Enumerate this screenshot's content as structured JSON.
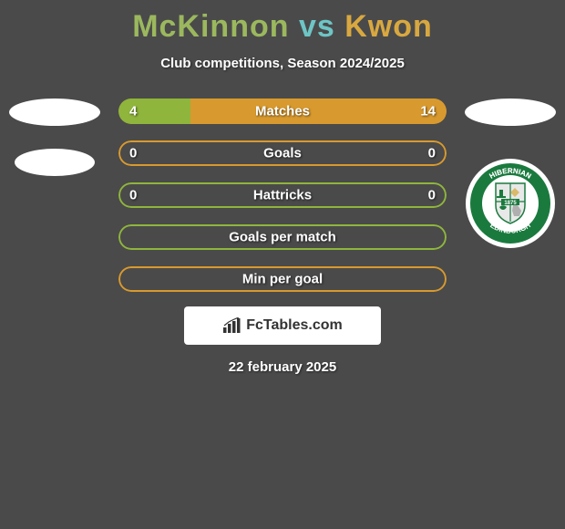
{
  "header": {
    "player1": "McKinnon",
    "vs": "vs",
    "player2": "Kwon",
    "subtitle": "Club competitions, Season 2024/2025"
  },
  "colors": {
    "player1_accent": "#9bb85e",
    "vs_accent": "#6ec5c5",
    "player2_accent": "#d8a840",
    "bar_green": "#8fb53c",
    "bar_orange": "#d89a2e",
    "background": "#4a4a4a",
    "text": "#ffffff"
  },
  "bars": [
    {
      "label": "Matches",
      "left_value": "4",
      "right_value": "14",
      "left_pct": 22,
      "right_pct": 78,
      "border_color": "#d89a2e",
      "left_fill": "#8fb53c",
      "right_fill": "#d89a2e",
      "show_values": true
    },
    {
      "label": "Goals",
      "left_value": "0",
      "right_value": "0",
      "left_pct": 0,
      "right_pct": 0,
      "border_color": "#d89a2e",
      "left_fill": "#8fb53c",
      "right_fill": "#d89a2e",
      "show_values": true
    },
    {
      "label": "Hattricks",
      "left_value": "0",
      "right_value": "0",
      "left_pct": 0,
      "right_pct": 0,
      "border_color": "#8fb53c",
      "left_fill": "#8fb53c",
      "right_fill": "#d89a2e",
      "show_values": true
    },
    {
      "label": "Goals per match",
      "left_value": "",
      "right_value": "",
      "left_pct": 0,
      "right_pct": 0,
      "border_color": "#8fb53c",
      "left_fill": "#8fb53c",
      "right_fill": "#d89a2e",
      "show_values": false
    },
    {
      "label": "Min per goal",
      "left_value": "",
      "right_value": "",
      "left_pct": 0,
      "right_pct": 0,
      "border_color": "#d89a2e",
      "left_fill": "#8fb53c",
      "right_fill": "#d89a2e",
      "show_values": false
    }
  ],
  "brand": {
    "text": "FcTables.com"
  },
  "footer": {
    "date": "22 february 2025"
  },
  "crest": {
    "top_text": "HIBERNIAN",
    "year": "1875",
    "bottom_text": "EDINBURGH",
    "colors": {
      "main": "#1a7a3e",
      "white": "#ffffff",
      "shield_bg": "#e8e8e8"
    }
  }
}
